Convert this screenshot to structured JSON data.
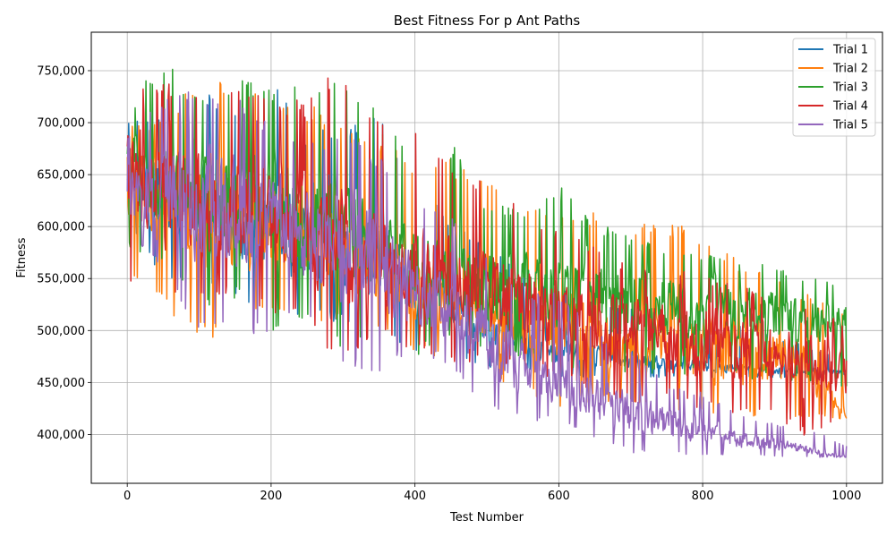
{
  "chart_data": {
    "type": "line",
    "title": "Best Fitness For p Ant Paths",
    "xlabel": "Test Number",
    "ylabel": "Fitness",
    "xlim": [
      -50,
      1050
    ],
    "ylim": [
      353000,
      787000
    ],
    "x_ticks": [
      0,
      200,
      400,
      600,
      800,
      1000
    ],
    "y_ticks": [
      400000,
      450000,
      500000,
      550000,
      600000,
      650000,
      700000,
      750000
    ],
    "x_tick_labels": [
      "0",
      "200",
      "400",
      "600",
      "800",
      "1000"
    ],
    "y_tick_labels": [
      "400,000",
      "450,000",
      "500,000",
      "550,000",
      "600,000",
      "650,000",
      "700,000",
      "750,000"
    ],
    "grid": true,
    "legend_position": "top-right",
    "series": [
      {
        "name": "Trial 1",
        "color": "#1f77b4",
        "x": [
          0,
          50,
          100,
          150,
          200,
          250,
          300,
          350,
          400,
          450,
          500,
          550,
          600,
          650,
          700,
          750,
          800,
          850,
          900,
          950,
          1000
        ],
        "y": [
          660000,
          625000,
          620000,
          610000,
          605000,
          590000,
          585000,
          570000,
          545000,
          520000,
          505000,
          495000,
          480000,
          475000,
          470000,
          468000,
          466000,
          463000,
          461000,
          460000,
          460000
        ],
        "min": [
          610000,
          545000,
          540000,
          530000,
          505000,
          510000,
          505000,
          495000,
          480000,
          470000,
          465000,
          460000,
          455000,
          455000,
          455000,
          455000,
          455000,
          455000,
          455000,
          455000,
          455000
        ],
        "max": [
          700000,
          705000,
          735000,
          720000,
          765000,
          690000,
          700000,
          715000,
          640000,
          610000,
          580000,
          560000,
          540000,
          530000,
          525000,
          520000,
          515000,
          505000,
          495000,
          485000,
          470000
        ]
      },
      {
        "name": "Trial 2",
        "color": "#ff7f0e",
        "x": [
          0,
          50,
          100,
          150,
          200,
          250,
          300,
          350,
          400,
          450,
          500,
          550,
          600,
          650,
          700,
          750,
          800,
          850,
          900,
          950,
          1000
        ],
        "y": [
          640000,
          625000,
          620000,
          615000,
          605000,
          590000,
          580000,
          565000,
          545000,
          530000,
          520000,
          510000,
          500000,
          495000,
          490000,
          485000,
          480000,
          475000,
          470000,
          465000,
          415000
        ],
        "min": [
          545000,
          520000,
          495000,
          490000,
          520000,
          505000,
          510000,
          500000,
          480000,
          470000,
          455000,
          440000,
          425000,
          430000,
          430000,
          420000,
          415000,
          415000,
          415000,
          415000,
          415000
        ],
        "max": [
          705000,
          700000,
          745000,
          745000,
          740000,
          720000,
          700000,
          690000,
          655000,
          665000,
          645000,
          635000,
          620000,
          615000,
          600000,
          612000,
          585000,
          570000,
          550000,
          535000,
          520000
        ]
      },
      {
        "name": "Trial 3",
        "color": "#2ca02c",
        "x": [
          0,
          50,
          100,
          150,
          200,
          250,
          300,
          350,
          400,
          450,
          500,
          550,
          600,
          650,
          700,
          750,
          800,
          850,
          900,
          950,
          1000
        ],
        "y": [
          650000,
          635000,
          625000,
          620000,
          610000,
          600000,
          590000,
          575000,
          560000,
          550000,
          545000,
          540000,
          535000,
          530000,
          528000,
          525000,
          522000,
          520000,
          515000,
          510000,
          505000
        ],
        "min": [
          580000,
          560000,
          520000,
          530000,
          500000,
          510000,
          480000,
          505000,
          475000,
          490000,
          480000,
          470000,
          465000,
          460000,
          460000,
          455000,
          460000,
          455000,
          450000,
          450000,
          445000
        ],
        "max": [
          715000,
          765000,
          725000,
          745000,
          735000,
          740000,
          745000,
          710000,
          665000,
          685000,
          625000,
          615000,
          640000,
          605000,
          590000,
          580000,
          575000,
          570000,
          560000,
          550000,
          545000
        ]
      },
      {
        "name": "Trial 4",
        "color": "#d62728",
        "x": [
          0,
          50,
          100,
          150,
          200,
          250,
          300,
          350,
          400,
          450,
          500,
          550,
          600,
          650,
          700,
          750,
          800,
          850,
          900,
          950,
          1000
        ],
        "y": [
          660000,
          630000,
          620000,
          615000,
          605000,
          595000,
          580000,
          575000,
          560000,
          550000,
          540000,
          530000,
          515000,
          505000,
          500000,
          495000,
          490000,
          485000,
          480000,
          470000,
          460000
        ],
        "min": [
          545000,
          520000,
          530000,
          530000,
          515000,
          505000,
          465000,
          490000,
          480000,
          470000,
          470000,
          460000,
          450000,
          440000,
          430000,
          430000,
          425000,
          420000,
          415000,
          395000,
          415000
        ],
        "max": [
          745000,
          740000,
          742000,
          740000,
          730000,
          720000,
          768000,
          700000,
          690000,
          670000,
          640000,
          620000,
          600000,
          585000,
          560000,
          560000,
          555000,
          545000,
          530000,
          520000,
          510000
        ]
      },
      {
        "name": "Trial 5",
        "color": "#9467bd",
        "x": [
          0,
          50,
          100,
          150,
          200,
          250,
          300,
          350,
          400,
          450,
          500,
          550,
          600,
          650,
          700,
          750,
          800,
          850,
          900,
          950,
          1000
        ],
        "y": [
          630000,
          630000,
          625000,
          615000,
          605000,
          590000,
          575000,
          560000,
          540000,
          520000,
          490000,
          465000,
          450000,
          435000,
          420000,
          410000,
          400000,
          395000,
          390000,
          385000,
          378000
        ],
        "min": [
          590000,
          560000,
          495000,
          490000,
          500000,
          510000,
          458000,
          460000,
          480000,
          465000,
          425000,
          415000,
          410000,
          395000,
          380000,
          380000,
          380000,
          380000,
          378000,
          378000,
          378000
        ],
        "max": [
          690000,
          722000,
          736000,
          725000,
          700000,
          680000,
          690000,
          670000,
          620000,
          610000,
          575000,
          540000,
          540000,
          500000,
          480000,
          450000,
          440000,
          420000,
          410000,
          405000,
          390000
        ]
      }
    ]
  }
}
